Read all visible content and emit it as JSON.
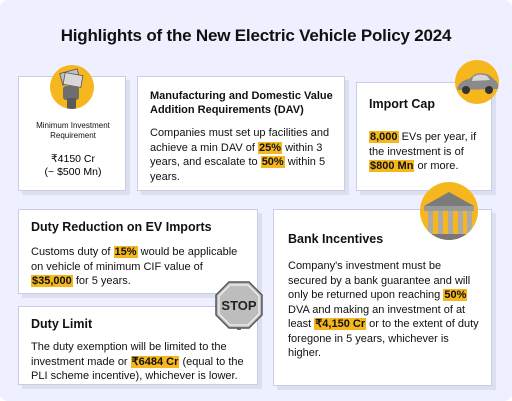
{
  "title": "Highlights of the New Electric Vehicle Policy 2024",
  "investment": {
    "label": "Minimum Investment Requirement",
    "value_inr": "₹4150 Cr",
    "value_usd": "(~ $500 Mn)"
  },
  "manufacturing": {
    "heading": "Manufacturing and Domestic Value Addition Requirements (DAV)",
    "t1": "Companies must set up facilities and achieve a min DAV of ",
    "h1": "25%",
    "t2": " within 3 years, and escalate to ",
    "h2": "50%",
    "t3": " within 5 years."
  },
  "import_cap": {
    "heading": "Import Cap",
    "h1": "8,000",
    "t1": " EVs per year, if the investment is of ",
    "h2": "$800 Mn",
    "t2": " or more."
  },
  "duty_reduction": {
    "heading": "Duty Reduction on EV Imports",
    "t1": "Customs duty of ",
    "h1": "15%",
    "t2": " would be applicable on vehicle of minimum CIF value of ",
    "h2": "$35,000",
    "t3": " for 5 years."
  },
  "bank": {
    "heading": "Bank Incentives",
    "t1": "Company's investment must be secured by a bank guarantee and will only be returned upon reaching ",
    "h1": "50%",
    "t2": " DVA and making an investment of at least ",
    "h2": "₹4,150 Cr",
    "t3": " or to the extent of duty foregone in 5 years, whichever is higher."
  },
  "duty_limit": {
    "heading": "Duty Limit",
    "t1": "The duty exemption will be limited to the investment made or ",
    "h1": "₹6484 Cr",
    "t2": " (equal to the PLI scheme incentive), whichever is lower.",
    "stop_sign": "STOP"
  },
  "colors": {
    "accent": "#f5b71d",
    "background": "#eef0ff",
    "card_border": "#c9cde3"
  },
  "icons": [
    "money-hand-icon",
    "car-icon",
    "bank-building-icon",
    "stop-sign-icon"
  ]
}
